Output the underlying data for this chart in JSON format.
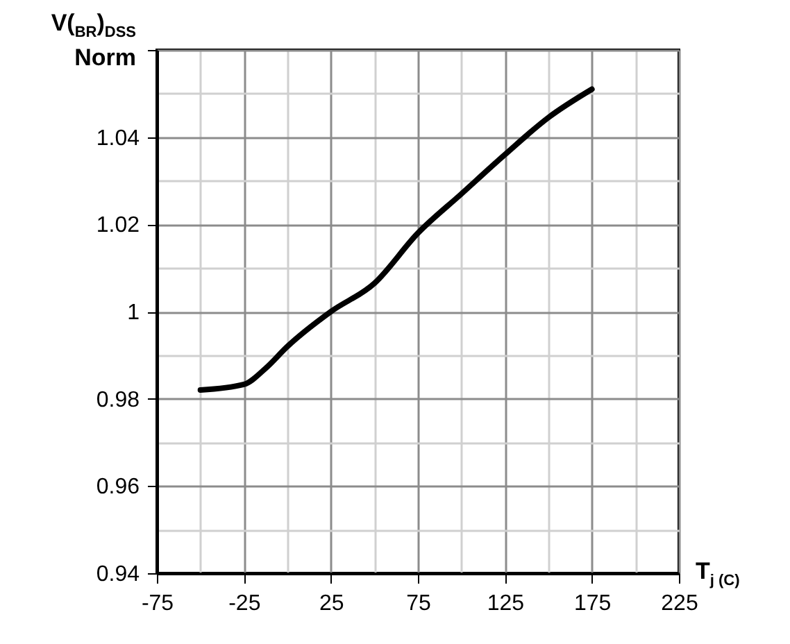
{
  "chart_data": {
    "type": "line",
    "xlabel": "T$_{j (C)}$",
    "ylabel": "V($_{BR}$)$_{DSS}$\nNorm",
    "x": [
      -50,
      -25,
      -12.5,
      0,
      25,
      50,
      75,
      100,
      125,
      150,
      175
    ],
    "series": [
      {
        "color": "#000000",
        "values": [
          0.982,
          0.9833,
          0.987,
          0.992,
          1.0,
          1.0065,
          1.018,
          1.027,
          1.036,
          1.0445,
          1.051
        ]
      }
    ],
    "xlim": [
      -75,
      225
    ],
    "xticks": [
      -75,
      -25,
      25,
      75,
      125,
      175,
      225
    ],
    "ylim": [
      0.94,
      1.06
    ],
    "yticks": [
      0.94,
      0.96,
      0.98,
      1,
      1.02,
      1.04,
      {
        "value": 1.06,
        "label": null
      }
    ],
    "grid": true,
    "marker": "none",
    "line_style": "solid"
  }
}
